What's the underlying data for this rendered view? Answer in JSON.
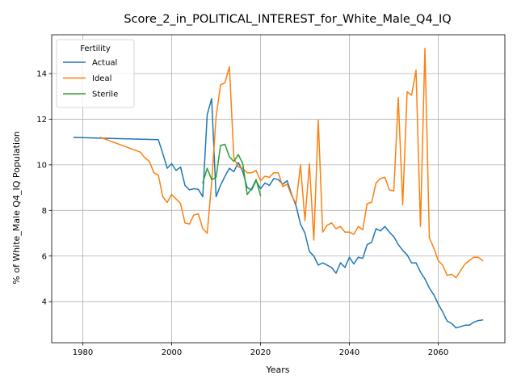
{
  "chart_data": {
    "type": "line",
    "title": "Score_2_in_POLITICAL_INTEREST_for_White_Male_Q4_IQ",
    "xlabel": "Years",
    "ylabel": "% of White_Male Q4_IQ Population",
    "xlim": [
      1973,
      2075
    ],
    "ylim": [
      2.2,
      15.7
    ],
    "xticks": [
      1980,
      2000,
      2020,
      2040,
      2060
    ],
    "yticks": [
      4,
      6,
      8,
      10,
      12,
      14
    ],
    "grid": true,
    "legend": {
      "title": "Fertility",
      "position": "upper-left"
    },
    "series": [
      {
        "name": "Actual",
        "color": "#1f77b4",
        "x": [
          1978,
          1997,
          1998,
          1999,
          2000,
          2001,
          2002,
          2003,
          2004,
          2005,
          2006,
          2007,
          2008,
          2009,
          2010,
          2011,
          2012,
          2013,
          2014,
          2015,
          2016,
          2017,
          2018,
          2019,
          2020,
          2021,
          2022,
          2023,
          2024,
          2025,
          2026,
          2027,
          2028,
          2029,
          2030,
          2031,
          2032,
          2033,
          2034,
          2035,
          2036,
          2037,
          2038,
          2039,
          2040,
          2041,
          2042,
          2043,
          2044,
          2045,
          2046,
          2047,
          2048,
          2049,
          2050,
          2051,
          2052,
          2053,
          2054,
          2055,
          2056,
          2057,
          2058,
          2059,
          2060,
          2061,
          2062,
          2063,
          2064,
          2065,
          2066,
          2067,
          2068,
          2069,
          2070
        ],
        "y": [
          11.2,
          11.1,
          10.5,
          9.85,
          10.05,
          9.75,
          9.9,
          9.1,
          8.9,
          8.95,
          8.92,
          8.6,
          12.2,
          12.9,
          8.6,
          9.1,
          9.5,
          9.85,
          9.7,
          10.1,
          9.7,
          9.0,
          8.9,
          9.3,
          8.95,
          9.2,
          9.1,
          9.4,
          9.35,
          9.15,
          9.3,
          8.7,
          8.2,
          7.4,
          7.0,
          6.2,
          6.0,
          5.6,
          5.7,
          5.6,
          5.5,
          5.25,
          5.7,
          5.5,
          5.95,
          5.65,
          5.95,
          5.9,
          6.5,
          6.6,
          7.2,
          7.1,
          7.3,
          7.05,
          6.85,
          6.5,
          6.25,
          6.05,
          5.7,
          5.7,
          5.3,
          5.0,
          4.6,
          4.3,
          3.9,
          3.55,
          3.15,
          3.05,
          2.85,
          2.9,
          2.97,
          2.97,
          3.1,
          3.17,
          3.2
        ]
      },
      {
        "name": "Ideal",
        "color": "#ff7f0e",
        "x": [
          1984,
          1993,
          1994,
          1995,
          1996,
          1997,
          1998,
          1999,
          2000,
          2001,
          2002,
          2003,
          2004,
          2005,
          2006,
          2007,
          2008,
          2009,
          2010,
          2011,
          2012,
          2013,
          2014,
          2015,
          2016,
          2017,
          2018,
          2019,
          2020,
          2021,
          2022,
          2023,
          2024,
          2025,
          2026,
          2027,
          2028,
          2029,
          2030,
          2031,
          2032,
          2033,
          2034,
          2035,
          2036,
          2037,
          2038,
          2039,
          2040,
          2041,
          2042,
          2043,
          2044,
          2045,
          2046,
          2047,
          2048,
          2049,
          2050,
          2051,
          2052,
          2053,
          2054,
          2055,
          2056,
          2057,
          2058,
          2059,
          2060,
          2061,
          2062,
          2063,
          2064,
          2065,
          2066,
          2067,
          2068,
          2069,
          2070
        ],
        "y": [
          11.2,
          10.55,
          10.3,
          10.15,
          9.65,
          9.55,
          8.6,
          8.35,
          8.7,
          8.5,
          8.3,
          7.45,
          7.4,
          7.8,
          7.85,
          7.2,
          7.0,
          9.2,
          12.1,
          13.5,
          13.6,
          14.3,
          10.3,
          9.9,
          9.85,
          9.65,
          9.65,
          9.75,
          9.3,
          9.5,
          9.45,
          9.65,
          9.65,
          9.05,
          9.15,
          8.65,
          8.3,
          10.0,
          7.55,
          10.05,
          6.7,
          11.95,
          7.05,
          7.35,
          7.45,
          7.2,
          7.3,
          7.05,
          7.05,
          6.95,
          7.3,
          7.15,
          8.3,
          8.35,
          9.2,
          9.4,
          9.45,
          8.9,
          8.85,
          12.95,
          8.25,
          13.2,
          13.05,
          14.15,
          7.3,
          15.1,
          6.8,
          6.35,
          5.8,
          5.6,
          5.15,
          5.2,
          5.05,
          5.35,
          5.65,
          5.8,
          5.95,
          5.95,
          5.8
        ]
      },
      {
        "name": "Sterile",
        "color": "#2ca02c",
        "x": [
          2007,
          2008,
          2009,
          2010,
          2011,
          2012,
          2013,
          2014,
          2015,
          2016,
          2017,
          2018,
          2019,
          2020
        ],
        "y": [
          9.2,
          9.85,
          9.35,
          9.45,
          10.85,
          10.9,
          10.35,
          10.15,
          10.45,
          10.05,
          8.7,
          8.95,
          9.35,
          8.65
        ]
      }
    ]
  }
}
